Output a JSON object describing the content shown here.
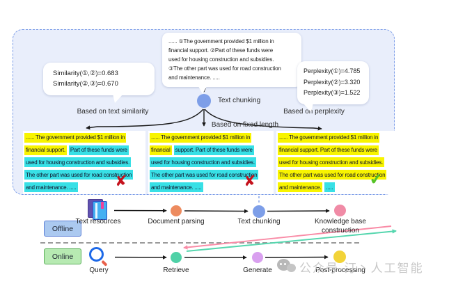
{
  "panel": {
    "source_bubble_lines": [
      "...... ①The government provided $1 million in",
      "financial support. ②Part of these funds were",
      "used for housing construction and subsidies.",
      "③The other part was used for road construction",
      "and maintenance. ....."
    ],
    "similarity_lines": [
      "Similarity(①,②)=0.683",
      "Similarity(②,③)=0.670"
    ],
    "perplexity_lines": [
      "Perplexity(①)=4.785",
      "Perplexity(②)=3.320",
      "Perplexity(③)=1.522"
    ],
    "node_label": "Text chunking",
    "branches": {
      "similarity": "Based on text similarity",
      "fixed": "Based on fixed length",
      "perplexity": "Based on perplexity"
    },
    "chunk_results": [
      {
        "method": "text similarity",
        "verdict": "rejected",
        "verdict_glyph": "✘",
        "lines": [
          [
            {
              "t": "...... The government provided $1 million in",
              "h": "y"
            }
          ],
          [
            {
              "t": "financial support.",
              "h": "y"
            },
            {
              "t": "Part of these funds were",
              "h": "c"
            }
          ],
          [
            {
              "t": "used for housing construction and subsidies.",
              "h": "c"
            }
          ],
          [
            {
              "t": "The other part was used for road construction",
              "h": "c"
            }
          ],
          [
            {
              "t": "and maintenance. .....",
              "h": "c"
            }
          ]
        ]
      },
      {
        "method": "fixed length",
        "verdict": "rejected",
        "verdict_glyph": "✘",
        "lines": [
          [
            {
              "t": "...... The government provided $1 million in",
              "h": "y"
            }
          ],
          [
            {
              "t": "financial",
              "h": "y"
            },
            {
              "t": "support. Part of these funds were",
              "h": "c"
            }
          ],
          [
            {
              "t": "used for housing construction and subsidies.",
              "h": "c"
            }
          ],
          [
            {
              "t": "The other part was used for road construction",
              "h": "c"
            }
          ],
          [
            {
              "t": "and maintenance. .....",
              "h": "c"
            }
          ]
        ]
      },
      {
        "method": "perplexity",
        "verdict": "accepted",
        "verdict_glyph": "✔",
        "lines": [
          [
            {
              "t": "...... The government provided $1 million in",
              "h": "y"
            }
          ],
          [
            {
              "t": "financial support. Part of these funds were",
              "h": "y"
            }
          ],
          [
            {
              "t": "used for housing construction and subsidies.",
              "h": "y"
            }
          ],
          [
            {
              "t": "The other part was used for road construction",
              "h": "y"
            }
          ],
          [
            {
              "t": "and maintenance.",
              "h": "y"
            },
            {
              "t": ".....",
              "h": "c"
            }
          ]
        ]
      }
    ]
  },
  "pipeline": {
    "offline": {
      "tag": "Offline",
      "steps": [
        {
          "label": "Text resources",
          "icon": "book-icon"
        },
        {
          "label": "Document parsing",
          "color": "#ed8b5f"
        },
        {
          "label": "Text chunking",
          "color": "#7d9ee8"
        },
        {
          "label": "Knowledge base construction",
          "color": "#f08ba6"
        }
      ]
    },
    "online": {
      "tag": "Online",
      "steps": [
        {
          "label": "Query",
          "icon": "magnifier-icon"
        },
        {
          "label": "Retrieve",
          "color": "#4fd1a7"
        },
        {
          "label": "Generate",
          "color": "#d9a0ef"
        },
        {
          "label": "Post-processing",
          "color": "#f2d338"
        }
      ]
    }
  },
  "watermark": {
    "text": "公众号·汀丶人工智能",
    "icon": "wechat-icon"
  },
  "colors": {
    "panel_border": "#7b9ce8",
    "panel_bg": "#e9eefb",
    "node_blue": "#7d9ee8",
    "highlight_yellow": "#f8f400",
    "highlight_cyan": "#38e0e6",
    "cross_red": "#c5121c",
    "check_green": "#55c326",
    "offline_tag_bg": "#abc9f0",
    "online_tag_bg": "#b7eab2",
    "arrow_black": "#1a1a1a",
    "kb_to_retrieve_pink": "#f98ba6",
    "retrieve_to_kb_green": "#55d6ae",
    "separator_gray": "#8c8c8c",
    "dashed_connector_blue": "#7d9ee8"
  }
}
